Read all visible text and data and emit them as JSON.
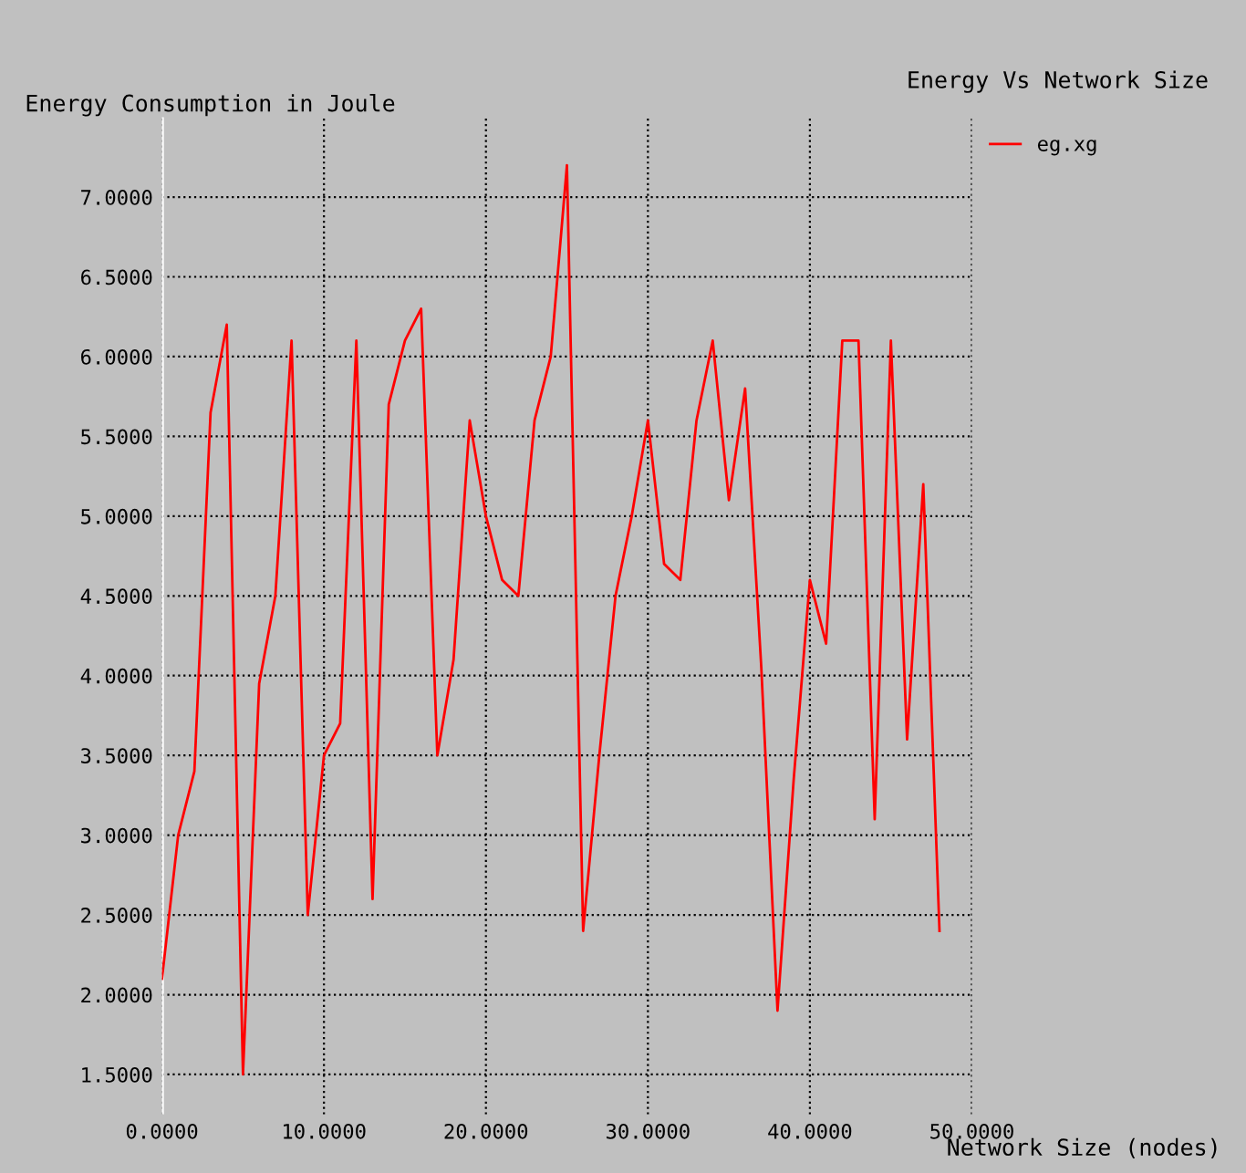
{
  "chart_data": {
    "type": "line",
    "title": "Energy Vs Network Size",
    "xlabel": "Network Size (nodes)",
    "ylabel": "Energy Consumption in Joule",
    "x": [
      0,
      1,
      2,
      3,
      4,
      5,
      6,
      7,
      8,
      9,
      10,
      11,
      12,
      13,
      14,
      15,
      16,
      17,
      18,
      19,
      20,
      21,
      22,
      23,
      24,
      25,
      26,
      27,
      28,
      29,
      30,
      31,
      32,
      33,
      34,
      35,
      36,
      37,
      38,
      39,
      40,
      41,
      42,
      43,
      44,
      45,
      46,
      47,
      48
    ],
    "series": [
      {
        "name": "eg.xg",
        "color": "#ff0000",
        "values": [
          2.1,
          3.0,
          3.4,
          5.65,
          6.2,
          1.5,
          3.95,
          4.5,
          6.1,
          2.5,
          3.5,
          3.7,
          6.1,
          2.6,
          5.7,
          6.1,
          6.3,
          3.5,
          4.1,
          5.6,
          5.0,
          4.6,
          4.5,
          5.6,
          6.0,
          7.2,
          2.4,
          3.5,
          4.5,
          5.0,
          5.6,
          4.7,
          4.6,
          5.6,
          6.1,
          5.1,
          5.8,
          4.05,
          1.9,
          3.35,
          4.6,
          4.2,
          6.1,
          6.1,
          3.1,
          6.1,
          3.6,
          5.2,
          2.4
        ]
      }
    ],
    "xlim": [
      0,
      50
    ],
    "ylim": [
      1.25,
      7.5
    ],
    "xticks": [
      {
        "value": 0,
        "label": "0.0000"
      },
      {
        "value": 10,
        "label": "10.0000"
      },
      {
        "value": 20,
        "label": "20.0000"
      },
      {
        "value": 30,
        "label": "30.0000"
      },
      {
        "value": 40,
        "label": "40.0000"
      },
      {
        "value": 50,
        "label": "50.0000"
      }
    ],
    "yticks": [
      {
        "value": 1.5,
        "label": "1.5000"
      },
      {
        "value": 2.0,
        "label": "2.0000"
      },
      {
        "value": 2.5,
        "label": "2.5000"
      },
      {
        "value": 3.0,
        "label": "3.0000"
      },
      {
        "value": 3.5,
        "label": "3.5000"
      },
      {
        "value": 4.0,
        "label": "4.0000"
      },
      {
        "value": 4.5,
        "label": "4.5000"
      },
      {
        "value": 5.0,
        "label": "5.0000"
      },
      {
        "value": 5.5,
        "label": "5.5000"
      },
      {
        "value": 6.0,
        "label": "6.0000"
      },
      {
        "value": 6.5,
        "label": "6.5000"
      },
      {
        "value": 7.0,
        "label": "7.0000"
      }
    ],
    "grid": true,
    "legend": "top right",
    "marker": "none",
    "line_style": "solid"
  }
}
